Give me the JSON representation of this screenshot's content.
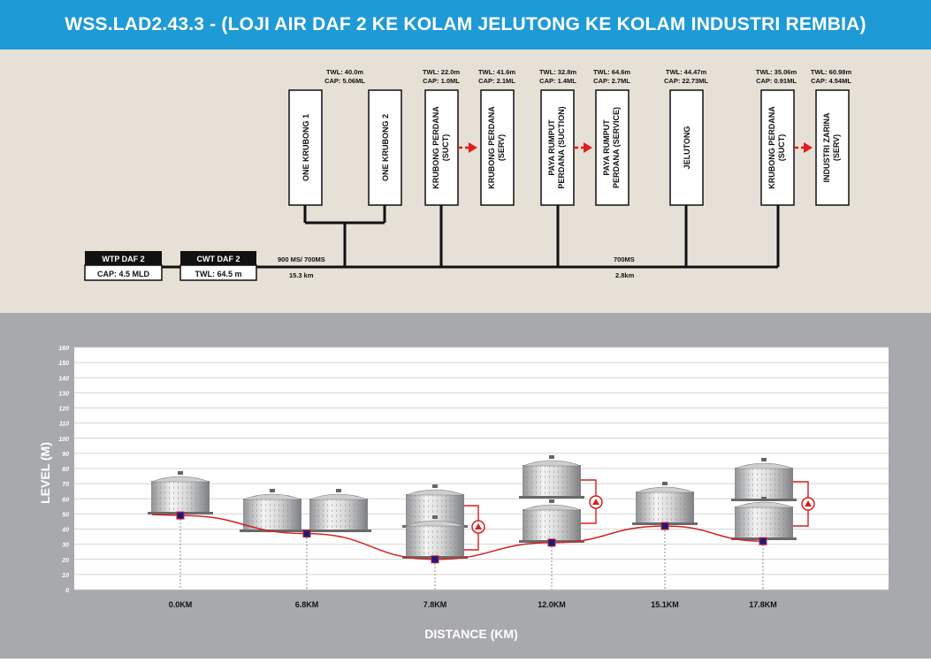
{
  "title": "WSS.LAD2.43.3 - (LOJI AIR DAF 2 KE KOLAM JELUTONG KE KOLAM INDUSTRI REMBIA)",
  "colors": {
    "header": "#1e9ad6",
    "schematic_bg": "#e6e0d6",
    "profile_bg": "#a8a9ad",
    "pipe": "#d42020",
    "marker": "#1a1a80",
    "pump_arrow": "#e11d1d"
  },
  "source_boxes": [
    {
      "id": "wtp",
      "title": "WTP DAF 2",
      "value": "CAP: 4.5 MLD"
    },
    {
      "id": "cwt",
      "title": "CWT DAF 2",
      "value": "TWL: 64.5 m"
    }
  ],
  "pipes": [
    {
      "size": "900 MS/ 700MS",
      "length": "15.3 km"
    },
    {
      "size": "700MS",
      "length": "2.8km"
    }
  ],
  "reservoirs": [
    {
      "id": "one-krubong-1",
      "name": "ONE KRUBONG 1",
      "twl": "TWL: 40.0m",
      "cap": "CAP: 5.06ML"
    },
    {
      "id": "one-krubong-2",
      "name": "ONE KRUBONG 2"
    },
    {
      "id": "krubong-perdana-suct-1",
      "name": "KRUBONG PERDANA (SUCT)",
      "twl": "TWL: 22.0m",
      "cap": "CAP: 1.0ML"
    },
    {
      "id": "krubong-perdana-serv",
      "name": "KRUBONG PERDANA (SERV)",
      "twl": "TWL: 41.6m",
      "cap": "CAP: 2.1ML"
    },
    {
      "id": "paya-rumput-suction",
      "name": "PAYA RUMPUT PERDANA (SUCTION)",
      "twl": "TWL: 32.8m",
      "cap": "CAP: 1.4ML"
    },
    {
      "id": "paya-rumput-service",
      "name": "PAYA RUMPUT PERDANA (SERVICE)",
      "twl": "TWL: 64.6m",
      "cap": "CAP: 2.7ML"
    },
    {
      "id": "jelutong",
      "name": "JELUTONG",
      "twl": "TWL: 44.47m",
      "cap": "CAP: 22.73ML"
    },
    {
      "id": "krubong-perdana-suct-2",
      "name": "KRUBONG PERDANA (SUCT)",
      "twl": "TWL: 35.06m",
      "cap": "CAP: 0.91ML"
    },
    {
      "id": "industri-zarina",
      "name": "INDUSTRI ZARINA (SERV)",
      "twl": "TWL: 60.98m",
      "cap": "CAP: 4.54ML"
    }
  ],
  "profile_chart": {
    "ylabel": "LEVEL (M)",
    "xlabel": "DISTANCE (KM)",
    "yticks": [
      "0",
      "10",
      "20",
      "30",
      "40",
      "50",
      "60",
      "70",
      "80",
      "90",
      "100",
      "110",
      "120",
      "130",
      "140",
      "150",
      "160"
    ],
    "ylim": [
      0,
      160
    ],
    "xticks": [
      "0.0KM",
      "6.8KM",
      "7.8KM",
      "12.0KM",
      "15.1KM",
      "17.8KM"
    ],
    "grid": true,
    "ground_line_points": [
      {
        "x": "0.0KM",
        "level": 49
      },
      {
        "x": "6.8KM",
        "level": 37
      },
      {
        "x": "7.8KM",
        "level": 20
      },
      {
        "x": "12.0KM",
        "level": 31
      },
      {
        "x": "15.1KM",
        "level": 42
      },
      {
        "x": "17.8KM",
        "level": 32
      }
    ]
  }
}
